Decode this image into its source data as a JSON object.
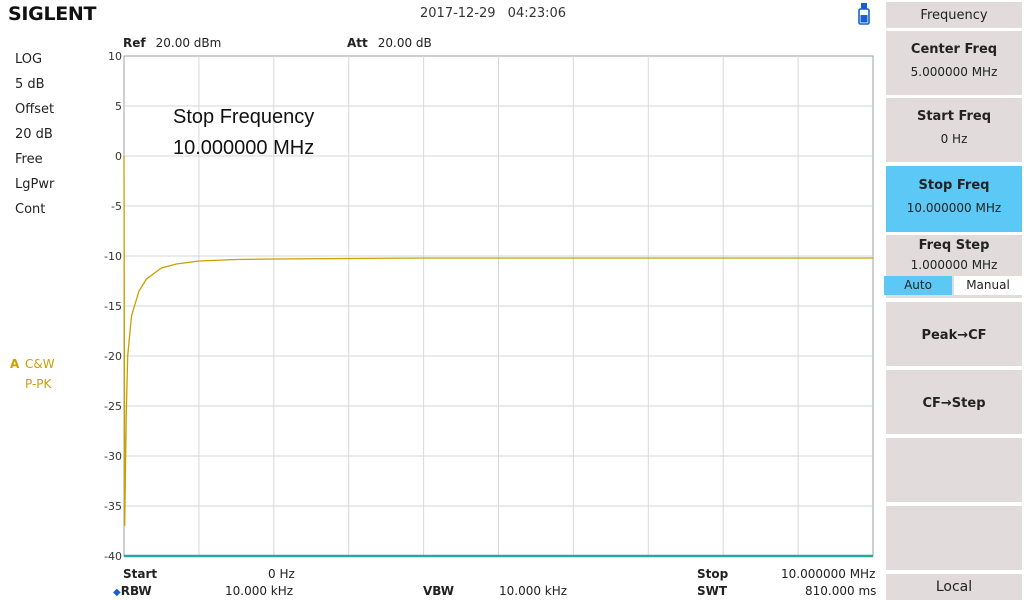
{
  "header": {
    "brand": "SIGLENT",
    "datetime": "2017-12-29   04:23:06"
  },
  "left_status": [
    "LOG",
    "5 dB",
    "Offset",
    "20 dB",
    "Free",
    "LgPwr",
    "Cont"
  ],
  "trace": {
    "letter": "A",
    "mode": "C&W",
    "detector": "P-PK",
    "color": "#c8a000"
  },
  "ref": {
    "label": "Ref",
    "value": "20.00 dBm"
  },
  "att": {
    "label": "Att",
    "value": "20.00 dB"
  },
  "overlay": {
    "title": "Stop Frequency",
    "value": "10.000000 MHz"
  },
  "y_ticks": [
    "10",
    "5",
    "0",
    "-5",
    "-10",
    "-15",
    "-20",
    "-25",
    "-30",
    "-35",
    "-40"
  ],
  "bottom": {
    "start_label": "Start",
    "start_value": "0 Hz",
    "stop_label": "Stop",
    "stop_value": "10.000000 MHz",
    "rbw_label": "RBW",
    "rbw_value": "10.000 kHz",
    "vbw_label": "VBW",
    "vbw_value": "10.000 kHz",
    "swt_label": "SWT",
    "swt_value": "810.000 ms"
  },
  "softkeys": {
    "menu_title": "Frequency",
    "center_freq": {
      "label": "Center Freq",
      "value": "5.000000 MHz"
    },
    "start_freq": {
      "label": "Start Freq",
      "value": "0 Hz"
    },
    "stop_freq": {
      "label": "Stop Freq",
      "value": "10.000000 MHz"
    },
    "freq_step": {
      "label": "Freq Step",
      "value": "1.000000 MHz",
      "auto": "Auto",
      "manual": "Manual"
    },
    "peak_cf": "Peak→CF",
    "cf_step": "CF→Step",
    "local": "Local"
  },
  "chart_data": {
    "type": "line",
    "ylim": [
      -40,
      10
    ],
    "xlim_mhz": [
      0,
      10
    ],
    "series": [
      {
        "color": "#c8a000",
        "x": [
          0,
          0.01,
          0.03,
          0.05,
          0.1,
          0.2,
          0.3,
          0.5,
          0.7,
          1.0,
          1.5,
          2.0,
          3.0,
          4.0,
          5.0,
          6.0,
          7.0,
          8.0,
          9.0,
          10.0
        ],
        "y": [
          0,
          -37,
          -26,
          -20,
          -16,
          -13.5,
          -12.3,
          -11.2,
          -10.8,
          -10.5,
          -10.35,
          -10.3,
          -10.25,
          -10.2,
          -10.2,
          -10.2,
          -10.2,
          -10.2,
          -10.2,
          -10.2
        ]
      },
      {
        "color": "#2aa7a0",
        "x": [
          0,
          10
        ],
        "y": [
          -40,
          -40
        ]
      }
    ]
  }
}
